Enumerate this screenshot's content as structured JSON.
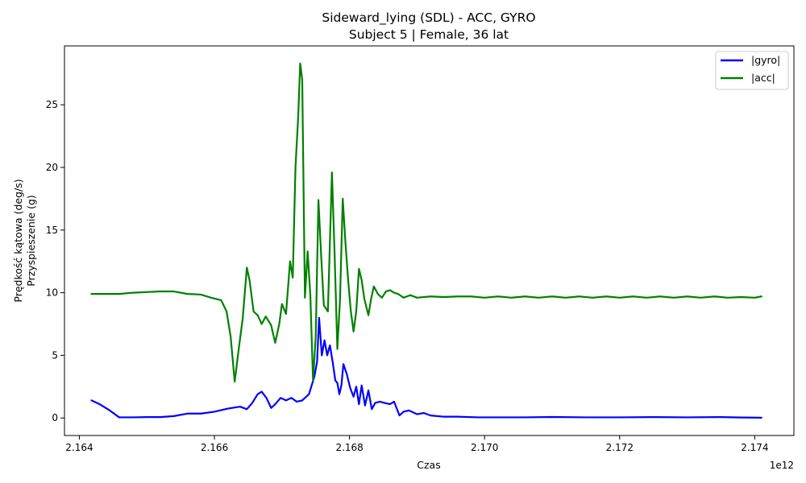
{
  "chart_data": {
    "type": "line",
    "title": "Sideward_lying (SDL) - ACC, GYRO",
    "subtitle": "Subject 5 | Female, 36 lat",
    "xlabel": "Czas",
    "x_offset_label": "1e12",
    "ylabel_lines": [
      "Prędkość kątowa (deg/s)",
      "Przyspieszenie (g)"
    ],
    "xlim": [
      2.16378,
      2.17458
    ],
    "ylim": [
      -1.4,
      29.7
    ],
    "x_ticks": [
      {
        "value": 2.164,
        "label": "2.164"
      },
      {
        "value": 2.166,
        "label": "2.166"
      },
      {
        "value": 2.168,
        "label": "2.168"
      },
      {
        "value": 2.17,
        "label": "2.170"
      },
      {
        "value": 2.172,
        "label": "2.172"
      },
      {
        "value": 2.174,
        "label": "2.174"
      }
    ],
    "y_ticks": [
      {
        "value": 0,
        "label": "0"
      },
      {
        "value": 5,
        "label": "5"
      },
      {
        "value": 10,
        "label": "10"
      },
      {
        "value": 15,
        "label": "15"
      },
      {
        "value": 20,
        "label": "20"
      },
      {
        "value": 25,
        "label": "25"
      }
    ],
    "grid": false,
    "legend_position": "top-right",
    "series": [
      {
        "name": "|gyro|",
        "color": "#0000ff",
        "points": [
          [
            2.16418,
            1.4
          ],
          [
            2.1643,
            1.1
          ],
          [
            2.16445,
            0.6
          ],
          [
            2.16459,
            0.05
          ],
          [
            2.1648,
            0.05
          ],
          [
            2.165,
            0.07
          ],
          [
            2.1652,
            0.07
          ],
          [
            2.1654,
            0.15
          ],
          [
            2.1656,
            0.35
          ],
          [
            2.1658,
            0.35
          ],
          [
            2.166,
            0.5
          ],
          [
            2.1662,
            0.75
          ],
          [
            2.16638,
            0.9
          ],
          [
            2.16648,
            0.7
          ],
          [
            2.16656,
            1.2
          ],
          [
            2.16664,
            1.9
          ],
          [
            2.1667,
            2.1
          ],
          [
            2.16677,
            1.6
          ],
          [
            2.16684,
            0.8
          ],
          [
            2.1669,
            1.1
          ],
          [
            2.16698,
            1.6
          ],
          [
            2.16706,
            1.4
          ],
          [
            2.16714,
            1.6
          ],
          [
            2.16722,
            1.3
          ],
          [
            2.1673,
            1.4
          ],
          [
            2.1674,
            1.9
          ],
          [
            2.16748,
            3.3
          ],
          [
            2.16752,
            4.5
          ],
          [
            2.16755,
            8.0
          ],
          [
            2.16759,
            5.0
          ],
          [
            2.16763,
            6.2
          ],
          [
            2.16767,
            5.0
          ],
          [
            2.16771,
            5.8
          ],
          [
            2.16775,
            4.5
          ],
          [
            2.16779,
            3.0
          ],
          [
            2.16782,
            2.8
          ],
          [
            2.16785,
            1.9
          ],
          [
            2.16788,
            2.6
          ],
          [
            2.16791,
            4.3
          ],
          [
            2.16796,
            3.5
          ],
          [
            2.16801,
            2.4
          ],
          [
            2.16806,
            1.7
          ],
          [
            2.1681,
            2.5
          ],
          [
            2.16814,
            1.1
          ],
          [
            2.16818,
            2.6
          ],
          [
            2.16823,
            1.0
          ],
          [
            2.16828,
            2.2
          ],
          [
            2.16833,
            0.7
          ],
          [
            2.16838,
            1.2
          ],
          [
            2.16845,
            1.3
          ],
          [
            2.16852,
            1.2
          ],
          [
            2.1686,
            1.1
          ],
          [
            2.16866,
            1.3
          ],
          [
            2.16874,
            0.2
          ],
          [
            2.1688,
            0.5
          ],
          [
            2.16888,
            0.6
          ],
          [
            2.169,
            0.3
          ],
          [
            2.1691,
            0.4
          ],
          [
            2.1692,
            0.2
          ],
          [
            2.1694,
            0.1
          ],
          [
            2.1696,
            0.1
          ],
          [
            2.1699,
            0.05
          ],
          [
            2.1702,
            0.05
          ],
          [
            2.1706,
            0.05
          ],
          [
            2.171,
            0.08
          ],
          [
            2.1715,
            0.05
          ],
          [
            2.172,
            0.05
          ],
          [
            2.1725,
            0.07
          ],
          [
            2.173,
            0.05
          ],
          [
            2.1735,
            0.07
          ],
          [
            2.1738,
            0.04
          ],
          [
            2.1741,
            0.02
          ]
        ]
      },
      {
        "name": "|acc|",
        "color": "#008000",
        "points": [
          [
            2.16418,
            9.9
          ],
          [
            2.1644,
            9.9
          ],
          [
            2.16459,
            9.9
          ],
          [
            2.1648,
            10.0
          ],
          [
            2.165,
            10.05
          ],
          [
            2.1652,
            10.1
          ],
          [
            2.1654,
            10.1
          ],
          [
            2.1656,
            9.9
          ],
          [
            2.1658,
            9.85
          ],
          [
            2.16595,
            9.6
          ],
          [
            2.1661,
            9.4
          ],
          [
            2.16618,
            8.5
          ],
          [
            2.16624,
            6.5
          ],
          [
            2.1663,
            2.9
          ],
          [
            2.16636,
            5.5
          ],
          [
            2.16642,
            8.0
          ],
          [
            2.16648,
            12.0
          ],
          [
            2.16652,
            11.0
          ],
          [
            2.16658,
            8.5
          ],
          [
            2.16664,
            8.2
          ],
          [
            2.1667,
            7.5
          ],
          [
            2.16676,
            8.1
          ],
          [
            2.16684,
            7.4
          ],
          [
            2.1669,
            6.0
          ],
          [
            2.16696,
            7.5
          ],
          [
            2.167,
            9.1
          ],
          [
            2.16706,
            8.3
          ],
          [
            2.16712,
            12.5
          ],
          [
            2.16716,
            11.2
          ],
          [
            2.1672,
            20.0
          ],
          [
            2.16724,
            24.0
          ],
          [
            2.16727,
            28.3
          ],
          [
            2.1673,
            27.0
          ],
          [
            2.16734,
            9.6
          ],
          [
            2.16738,
            13.3
          ],
          [
            2.16742,
            9.8
          ],
          [
            2.16746,
            3.0
          ],
          [
            2.1675,
            6.5
          ],
          [
            2.16754,
            17.4
          ],
          [
            2.16758,
            13.0
          ],
          [
            2.16762,
            9.0
          ],
          [
            2.16768,
            8.5
          ],
          [
            2.16774,
            19.6
          ],
          [
            2.16778,
            13.0
          ],
          [
            2.16782,
            5.5
          ],
          [
            2.16786,
            9.5
          ],
          [
            2.1679,
            17.5
          ],
          [
            2.16794,
            14.0
          ],
          [
            2.16798,
            11.0
          ],
          [
            2.16802,
            8.5
          ],
          [
            2.16806,
            6.9
          ],
          [
            2.1681,
            8.5
          ],
          [
            2.16814,
            11.9
          ],
          [
            2.16818,
            11.0
          ],
          [
            2.16822,
            9.5
          ],
          [
            2.16828,
            8.2
          ],
          [
            2.16832,
            9.5
          ],
          [
            2.16836,
            10.5
          ],
          [
            2.16842,
            9.9
          ],
          [
            2.16848,
            9.6
          ],
          [
            2.16854,
            10.1
          ],
          [
            2.1686,
            10.2
          ],
          [
            2.16866,
            10.0
          ],
          [
            2.16872,
            9.9
          ],
          [
            2.1688,
            9.6
          ],
          [
            2.1689,
            9.8
          ],
          [
            2.169,
            9.6
          ],
          [
            2.1692,
            9.7
          ],
          [
            2.1694,
            9.65
          ],
          [
            2.1696,
            9.7
          ],
          [
            2.1698,
            9.7
          ],
          [
            2.17,
            9.6
          ],
          [
            2.1702,
            9.7
          ],
          [
            2.1704,
            9.6
          ],
          [
            2.1706,
            9.7
          ],
          [
            2.1708,
            9.6
          ],
          [
            2.171,
            9.7
          ],
          [
            2.1712,
            9.6
          ],
          [
            2.1714,
            9.7
          ],
          [
            2.1716,
            9.6
          ],
          [
            2.1718,
            9.7
          ],
          [
            2.172,
            9.6
          ],
          [
            2.1722,
            9.7
          ],
          [
            2.1724,
            9.6
          ],
          [
            2.1726,
            9.7
          ],
          [
            2.1728,
            9.6
          ],
          [
            2.173,
            9.7
          ],
          [
            2.1732,
            9.6
          ],
          [
            2.1734,
            9.7
          ],
          [
            2.1736,
            9.6
          ],
          [
            2.1738,
            9.65
          ],
          [
            2.174,
            9.6
          ],
          [
            2.1741,
            9.7
          ]
        ]
      }
    ]
  }
}
